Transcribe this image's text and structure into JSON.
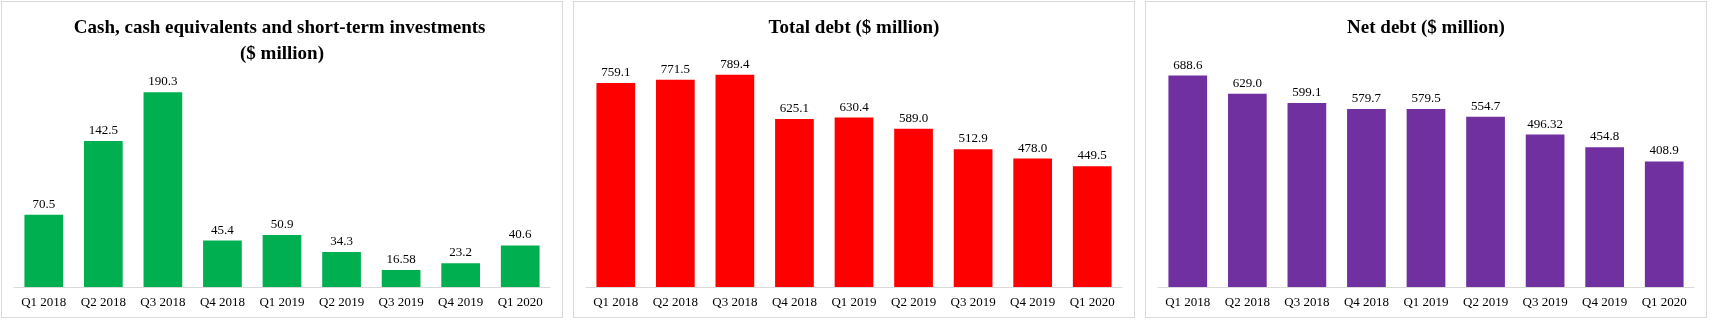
{
  "chart_data": [
    {
      "type": "bar",
      "title": "Cash, cash equivalents and short-term investments ($ million)",
      "categories": [
        "Q1 2018",
        "Q2 2018",
        "Q3 2018",
        "Q4 2018",
        "Q1 2019",
        "Q2 2019",
        "Q3 2019",
        "Q4 2019",
        "Q1 2020"
      ],
      "values": [
        70.5,
        142.5,
        190.3,
        45.4,
        50.9,
        34.3,
        16.58,
        23.2,
        40.6
      ],
      "color": "#00b050",
      "data_labels": true
    },
    {
      "type": "bar",
      "title": "Total debt ($ million)",
      "categories": [
        "Q1 2018",
        "Q2 2018",
        "Q3 2018",
        "Q4 2018",
        "Q1 2019",
        "Q2 2019",
        "Q3 2019",
        "Q4 2019",
        "Q1 2020"
      ],
      "values": [
        759.1,
        771.5,
        789.4,
        625.1,
        630.4,
        589.0,
        512.9,
        478.0,
        449.5
      ],
      "color": "#ff0000",
      "value_labels": [
        "759.1",
        "771.5",
        "789.4",
        "625.1",
        "630.4",
        "589.0",
        "512.9",
        "478.0",
        "449.5"
      ]
    },
    {
      "type": "bar",
      "title": "Net debt ($ million)",
      "categories": [
        "Q1 2018",
        "Q2 2018",
        "Q3 2018",
        "Q4 2018",
        "Q1 2019",
        "Q2 2019",
        "Q3 2019",
        "Q4 2019",
        "Q1 2020"
      ],
      "values": [
        688.6,
        629.0,
        599.1,
        579.7,
        579.5,
        554.7,
        496.32,
        454.8,
        408.9
      ],
      "color": "#7030a0",
      "value_labels": [
        "688.6",
        "629.0",
        "599.1",
        "579.7",
        "579.5",
        "554.7",
        "496.32",
        "454.8",
        "408.9"
      ]
    }
  ]
}
